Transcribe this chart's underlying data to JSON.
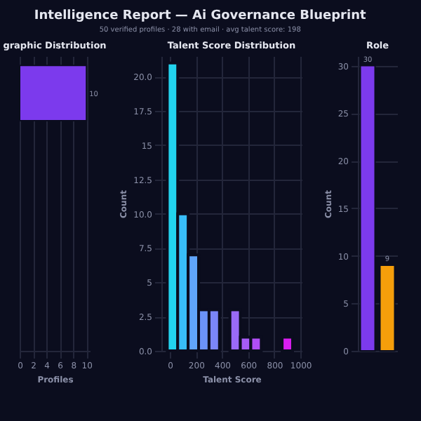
{
  "chart_data": [
    {
      "type": "other",
      "title": "Intelligence Report — Ai Governance Blueprint",
      "subtitle": "50 verified profiles · 28 with email · avg talent score: 198"
    },
    {
      "type": "bar",
      "orientation": "horizontal",
      "title": "graphic Distribution",
      "categories": [
        null,
        null,
        null,
        null
      ],
      "values": [
        10,
        null,
        null,
        null
      ],
      "color": "#7c3aed",
      "xlabel": "Profiles",
      "xlim": [
        0,
        10.5
      ],
      "xticks": [
        0,
        2,
        4,
        6,
        8,
        10
      ],
      "data_labels": true,
      "grid": "x"
    },
    {
      "type": "histogram",
      "title": "Talent Score Distribution",
      "bins": [
        -20,
        60,
        140,
        220,
        300,
        380,
        460,
        540,
        620,
        700,
        780,
        860,
        940
      ],
      "values": [
        21,
        10,
        7,
        3,
        3,
        0,
        3,
        1,
        1,
        0,
        0,
        1
      ],
      "colors": [
        "#22d3ee",
        "#38bdf8",
        "#60a5fa",
        "#6b93f8",
        "#7b86f8",
        "#8a78f8",
        "#9a6af7",
        "#a75cf6",
        "#b04ef5",
        "#bd3ff3",
        "#c830f1",
        "#d91ef0"
      ],
      "xlabel": "Talent Score",
      "ylabel": "Count",
      "xlim": [
        -65,
        1010
      ],
      "xticks": [
        0,
        200,
        400,
        600,
        800,
        1000
      ],
      "ylim": [
        0,
        21.5
      ],
      "yticks": [
        {
          "value": 0,
          "label": "0.0"
        },
        2.5,
        5,
        7.5,
        {
          "value": 10,
          "label": "10.0"
        },
        12.5,
        15,
        17.5,
        {
          "value": 20,
          "label": "20.0"
        }
      ],
      "grid": true
    },
    {
      "type": "bar",
      "title": "Role",
      "categories": [
        null,
        null
      ],
      "values": [
        30,
        9
      ],
      "colors": [
        "#7c3aed",
        "#f59e0b"
      ],
      "ylabel": "Count",
      "ylim": [
        0,
        31
      ],
      "yticks": [
        0,
        5,
        10,
        15,
        20,
        25,
        30
      ],
      "data_labels": true,
      "grid": "y"
    }
  ]
}
